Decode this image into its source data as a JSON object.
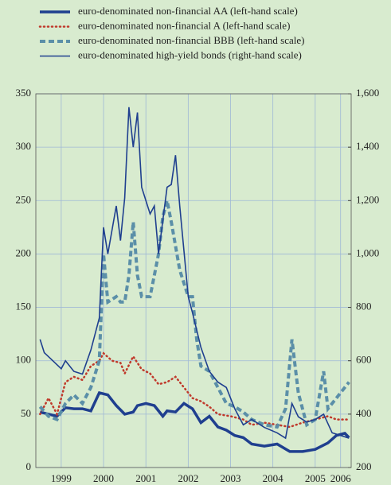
{
  "chart_data": {
    "type": "line",
    "xlim": [
      1998.9,
      2006.35
    ],
    "xticks": [
      {
        "value": 1999.5,
        "label": "1999"
      },
      {
        "value": 2000.5,
        "label": "2000"
      },
      {
        "value": 2001.5,
        "label": "2001"
      },
      {
        "value": 2002.5,
        "label": "2002"
      },
      {
        "value": 2003.5,
        "label": "2003"
      },
      {
        "value": 2004.5,
        "label": "2004"
      },
      {
        "value": 2005.5,
        "label": "2005"
      },
      {
        "value": 2006.1,
        "label": "2006"
      }
    ],
    "ylim": [
      0,
      350
    ],
    "yticks": [
      0,
      50,
      100,
      150,
      200,
      250,
      300,
      350
    ],
    "y2lim": [
      200,
      1600
    ],
    "y2ticks": [
      200,
      400,
      600,
      800,
      {
        "value": 1000,
        "label": "1,000"
      },
      {
        "value": 1200,
        "label": "1,200"
      },
      {
        "value": 1400,
        "label": "1,400"
      },
      {
        "value": 1600,
        "label": "1,600"
      }
    ],
    "grid": true,
    "series": [
      {
        "name": "euro-denominated non-financial AA (left-hand scale)",
        "color": "#1f3f8f",
        "style": "solid-thick",
        "x": [
          1999.0,
          1999.2,
          1999.4,
          1999.6,
          1999.8,
          2000.0,
          2000.2,
          2000.4,
          2000.6,
          2000.8,
          2001.0,
          2001.2,
          2001.3,
          2001.5,
          2001.7,
          2001.9,
          2002.0,
          2002.2,
          2002.4,
          2002.6,
          2002.8,
          2003.0,
          2003.2,
          2003.4,
          2003.6,
          2003.8,
          2004.0,
          2004.3,
          2004.6,
          2004.9,
          2005.2,
          2005.5,
          2005.8,
          2006.0,
          2006.2,
          2006.3
        ],
        "values": [
          52,
          50,
          48,
          56,
          55,
          55,
          53,
          70,
          68,
          58,
          50,
          52,
          58,
          60,
          58,
          48,
          53,
          52,
          60,
          55,
          42,
          48,
          38,
          35,
          30,
          28,
          22,
          20,
          22,
          15,
          15,
          17,
          23,
          30,
          32,
          28
        ]
      },
      {
        "name": "euro-denominated non-financial A (left-hand scale)",
        "color": "#c0392b",
        "style": "dotted",
        "x": [
          1999.0,
          1999.2,
          1999.4,
          1999.6,
          1999.8,
          2000.0,
          2000.2,
          2000.4,
          2000.5,
          2000.7,
          2000.9,
          2001.0,
          2001.2,
          2001.4,
          2001.6,
          2001.8,
          2002.0,
          2002.2,
          2002.4,
          2002.6,
          2002.8,
          2003.0,
          2003.2,
          2003.5,
          2003.8,
          2004.0,
          2004.3,
          2004.6,
          2004.9,
          2005.2,
          2005.5,
          2005.8,
          2006.0,
          2006.3
        ],
        "values": [
          50,
          65,
          50,
          80,
          85,
          82,
          95,
          100,
          107,
          100,
          98,
          88,
          104,
          92,
          88,
          78,
          80,
          85,
          75,
          65,
          62,
          57,
          50,
          48,
          45,
          40,
          42,
          40,
          38,
          42,
          45,
          48,
          45,
          45
        ]
      },
      {
        "name": "euro-denominated non-financial BBB (left-hand scale)",
        "color": "#5b8fa8",
        "style": "dashed",
        "x": [
          1999.0,
          1999.2,
          1999.4,
          1999.6,
          1999.8,
          2000.0,
          2000.2,
          2000.4,
          2000.5,
          2000.6,
          2000.8,
          2000.9,
          2001.0,
          2001.1,
          2001.2,
          2001.3,
          2001.4,
          2001.6,
          2001.8,
          2001.9,
          2002.0,
          2002.1,
          2002.3,
          2002.5,
          2002.6,
          2002.7,
          2002.8,
          2003.0,
          2003.2,
          2003.4,
          2003.6,
          2003.8,
          2004.0,
          2004.3,
          2004.6,
          2004.8,
          2004.95,
          2005.1,
          2005.3,
          2005.5,
          2005.7,
          2005.8,
          2006.0,
          2006.2,
          2006.3
        ],
        "values": [
          57,
          48,
          45,
          60,
          68,
          60,
          75,
          100,
          200,
          155,
          160,
          155,
          155,
          180,
          230,
          180,
          160,
          160,
          200,
          235,
          250,
          230,
          185,
          160,
          160,
          120,
          95,
          90,
          75,
          60,
          57,
          52,
          45,
          40,
          38,
          55,
          120,
          70,
          40,
          45,
          90,
          55,
          65,
          75,
          80
        ]
      },
      {
        "name": "euro-denominated high-yield bonds (right-hand scale)",
        "color": "#1f3f8f",
        "style": "solid-thin",
        "axis": "y2",
        "x": [
          1999.0,
          1999.1,
          1999.3,
          1999.5,
          1999.6,
          1999.8,
          2000.0,
          2000.2,
          2000.4,
          2000.5,
          2000.6,
          2000.8,
          2000.9,
          2001.0,
          2001.1,
          2001.2,
          2001.3,
          2001.4,
          2001.6,
          2001.7,
          2001.8,
          2002.0,
          2002.1,
          2002.2,
          2002.3,
          2002.5,
          2002.6,
          2002.8,
          2003.0,
          2003.2,
          2003.4,
          2003.6,
          2003.8,
          2004.0,
          2004.3,
          2004.6,
          2004.8,
          2004.95,
          2005.1,
          2005.3,
          2005.5,
          2005.7,
          2005.9,
          2006.1,
          2006.3
        ],
        "values": [
          680,
          630,
          600,
          570,
          600,
          560,
          550,
          640,
          760,
          1100,
          1000,
          1180,
          1050,
          1210,
          1550,
          1400,
          1530,
          1250,
          1150,
          1180,
          1000,
          1250,
          1260,
          1370,
          1180,
          840,
          780,
          650,
          560,
          520,
          500,
          420,
          360,
          380,
          350,
          330,
          310,
          440,
          390,
          370,
          380,
          400,
          330,
          320,
          310
        ]
      }
    ]
  }
}
